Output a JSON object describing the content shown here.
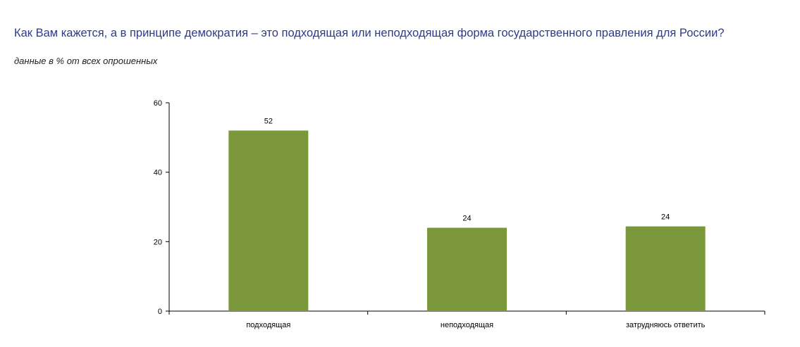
{
  "chart_data": {
    "type": "bar",
    "title": "Как Вам кажется, а в принципе демократия – это подходящая или неподходящая форма государственного правления для России?",
    "subtitle": "данные в % от всех опрошенных",
    "categories": [
      "подходящая",
      "неподходящая",
      "затрудняюсь ответить"
    ],
    "values": [
      52,
      24,
      24
    ],
    "data_labels": [
      "52",
      "24",
      "24"
    ],
    "bar_values": [
      52,
      24,
      24.4
    ],
    "ylim": [
      0,
      60
    ],
    "yticks": [
      0,
      20,
      40,
      60
    ],
    "ytick_labels": [
      "0",
      "20",
      "40",
      "60"
    ],
    "xlabel": "",
    "ylabel": "",
    "grid": false,
    "legend": "none",
    "colors": {
      "bar": "#7a973c",
      "axis": "#000000",
      "title": "#2e3a8c"
    }
  }
}
